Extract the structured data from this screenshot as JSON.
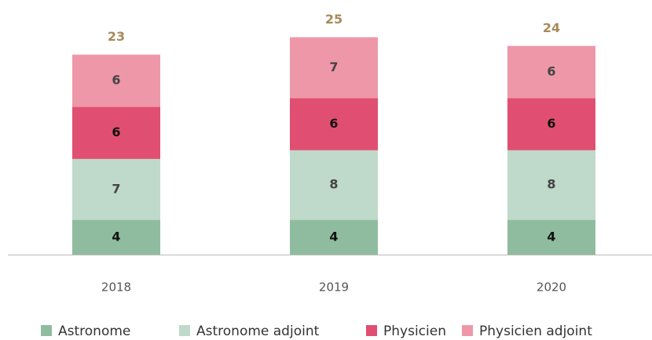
{
  "chart_data": {
    "type": "stacked_bar",
    "categories": [
      "2018",
      "2019",
      "2020"
    ],
    "series": [
      {
        "name": "Astronome",
        "color": "#8fbc9f",
        "values": [
          4,
          4,
          4
        ]
      },
      {
        "name": "Astronome adjoint",
        "color": "#bfd9cb",
        "values": [
          7,
          8,
          8
        ]
      },
      {
        "name": "Physicien",
        "color": "#e04f71",
        "values": [
          6,
          6,
          6
        ]
      },
      {
        "name": "Physicien adjoint",
        "color": "#ee97a9",
        "values": [
          6,
          7,
          6
        ]
      }
    ],
    "totals": [
      23,
      25,
      24
    ]
  }
}
